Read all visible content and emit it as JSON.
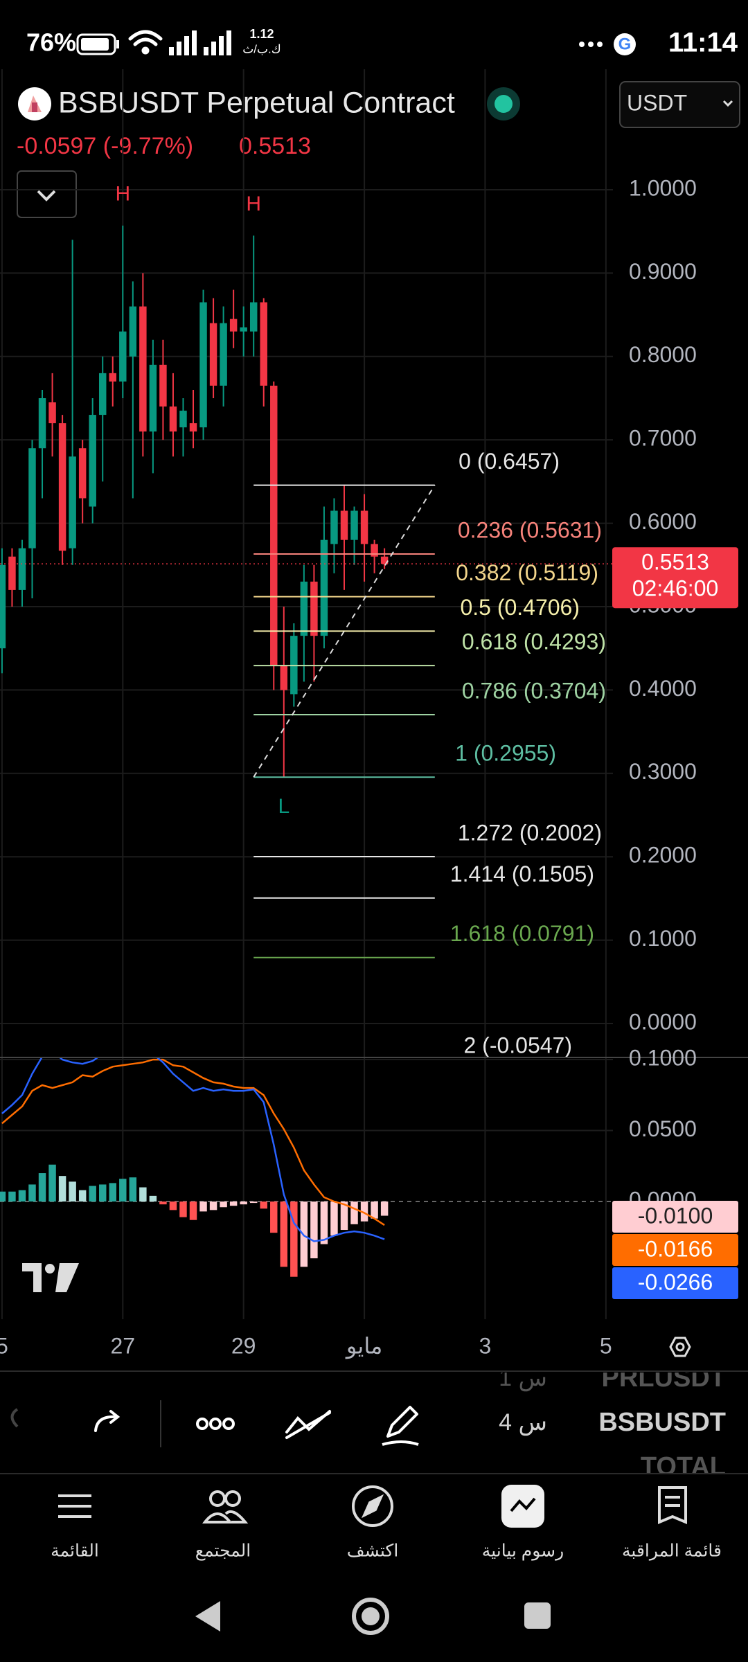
{
  "status_bar": {
    "battery": "76%",
    "speed": "1.12",
    "speed_unit": "ك.ب/ث",
    "time": "11:14"
  },
  "header": {
    "symbol": "BSBUSDT Perpetual Contract",
    "currency": "USDT",
    "change": "-0.0597 (-9.77%)"
  },
  "chart_data": {
    "type": "candlestick",
    "x": [
      0,
      1,
      2,
      3,
      4,
      5,
      6,
      7,
      8,
      9,
      10,
      11,
      12,
      13,
      14,
      15,
      16,
      17,
      18,
      19,
      20,
      21,
      22,
      23,
      24,
      25,
      26,
      27,
      28,
      29,
      30,
      31,
      32,
      33,
      34,
      35,
      36,
      37,
      38
    ],
    "open": [
      0.45,
      0.56,
      0.52,
      0.57,
      0.69,
      0.745,
      0.72,
      0.57,
      0.69,
      0.62,
      0.73,
      0.78,
      0.77,
      0.8,
      0.86,
      0.71,
      0.79,
      0.74,
      0.715,
      0.72,
      0.715,
      0.84,
      0.765,
      0.845,
      0.83,
      0.83,
      0.865,
      0.765,
      0.43,
      0.395,
      0.465,
      0.53,
      0.465,
      0.575,
      0.615,
      0.58,
      0.615,
      0.575,
      0.56
    ],
    "high": [
      0.57,
      0.57,
      0.58,
      0.7,
      0.76,
      0.78,
      0.73,
      0.94,
      0.7,
      0.75,
      0.8,
      0.8,
      0.957,
      0.89,
      0.9,
      0.82,
      0.82,
      0.78,
      0.75,
      0.76,
      0.88,
      0.87,
      0.86,
      0.88,
      0.86,
      0.945,
      0.87,
      0.77,
      0.5,
      0.48,
      0.55,
      0.55,
      0.62,
      0.63,
      0.645,
      0.62,
      0.635,
      0.58,
      0.57
    ],
    "low": [
      0.42,
      0.5,
      0.5,
      0.51,
      0.63,
      0.68,
      0.55,
      0.55,
      0.6,
      0.6,
      0.65,
      0.74,
      0.75,
      0.63,
      0.68,
      0.66,
      0.7,
      0.68,
      0.68,
      0.69,
      0.7,
      0.75,
      0.74,
      0.81,
      0.8,
      0.8,
      0.74,
      0.4,
      0.2955,
      0.38,
      0.41,
      0.41,
      0.45,
      0.54,
      0.52,
      0.55,
      0.53,
      0.54,
      0.545
    ],
    "close": [
      0.55,
      0.52,
      0.57,
      0.69,
      0.75,
      0.72,
      0.567,
      0.68,
      0.63,
      0.73,
      0.78,
      0.77,
      0.83,
      0.86,
      0.71,
      0.79,
      0.74,
      0.71,
      0.735,
      0.71,
      0.865,
      0.765,
      0.84,
      0.83,
      0.835,
      0.865,
      0.765,
      0.43,
      0.4,
      0.465,
      0.53,
      0.465,
      0.58,
      0.615,
      0.58,
      0.615,
      0.575,
      0.56,
      0.5513
    ],
    "colors": {
      "up": "#089981",
      "down": "#f23645"
    },
    "xlim": [
      -0.2,
      60.7
    ],
    "xticks": [
      {
        "value": 0,
        "label": "5"
      },
      {
        "value": 12,
        "label": "27"
      },
      {
        "value": 24,
        "label": "29"
      },
      {
        "value": 36,
        "label": "مايو"
      },
      {
        "value": 48,
        "label": "3"
      },
      {
        "value": 60,
        "label": "5"
      }
    ],
    "ylim": [
      -0.0407,
      1.1445
    ],
    "yticks": [
      {
        "value": 0,
        "label": "0.0000"
      },
      {
        "value": 0.1,
        "label": "0.1000"
      },
      {
        "value": 0.2,
        "label": "0.2000"
      },
      {
        "value": 0.3,
        "label": "0.3000"
      },
      {
        "value": 0.4,
        "label": "0.4000"
      },
      {
        "value": 0.5,
        "label": "0.5000"
      },
      {
        "value": 0.6,
        "label": "0.6000"
      },
      {
        "value": 0.7,
        "label": "0.7000"
      },
      {
        "value": 0.8,
        "label": "0.8000"
      },
      {
        "value": 0.9,
        "label": "0.9000"
      },
      {
        "value": 1,
        "label": "1.0000"
      }
    ],
    "grid": true,
    "countdown": "02:46:00",
    "annotations": [
      {
        "text": "H",
        "x": 12,
        "color": "#f23645"
      },
      {
        "text": "H",
        "x": 25,
        "color": "#f23645"
      },
      {
        "text": "L",
        "x": 28,
        "color": "#089981"
      }
    ],
    "fib": {
      "x_range": [
        25,
        43
      ],
      "levels": [
        {
          "label": "0 (0.6457)",
          "value": 0.6457,
          "color": "#e6e6e6"
        },
        {
          "label": "0.236 (0.5631)",
          "value": 0.5631,
          "color": "#f7837b"
        },
        {
          "label": "0.382 (0.5119)",
          "value": 0.5119,
          "color": "#f3d68c"
        },
        {
          "label": "0.5 (0.4706)",
          "value": 0.4706,
          "color": "#f5efab"
        },
        {
          "label": "0.618 (0.4293)",
          "value": 0.4293,
          "color": "#bfe3a8"
        },
        {
          "label": "0.786 (0.3704)",
          "value": 0.3704,
          "color": "#9fd3a3"
        },
        {
          "label": "1 (0.2955)",
          "value": 0.2955,
          "color": "#5ebfa3"
        },
        {
          "label": "1.272 (0.2002)",
          "value": 0.2002,
          "color": "#e6e6e6"
        },
        {
          "label": "1.414 (0.1505)",
          "value": 0.1505,
          "color": "#e6e6e6"
        },
        {
          "label": "1.618 (0.0791)",
          "value": 0.0791,
          "color": "#6aa84f"
        },
        {
          "label": "2 (-0.0547)",
          "value": -0.0547,
          "color": "#e6e6e6"
        }
      ]
    },
    "macd": {
      "ylim": [
        -0.0829,
        0.101
      ],
      "yticks": [
        {
          "value": 0,
          "label": "0.0000"
        },
        {
          "value": 0.05,
          "label": "0.0500"
        },
        {
          "value": 0.1,
          "label": "0.1000"
        }
      ],
      "histogram": {
        "values": [
          0.007,
          0.007,
          0.008,
          0.012,
          0.02,
          0.026,
          0.018,
          0.014,
          0.008,
          0.011,
          0.012,
          0.013,
          0.016,
          0.017,
          0.01,
          0.004,
          -0.002,
          -0.006,
          -0.011,
          -0.013,
          -0.007,
          -0.006,
          -0.004,
          -0.003,
          -0.002,
          -0.001,
          -0.005,
          -0.022,
          -0.046,
          -0.053,
          -0.046,
          -0.04,
          -0.03,
          -0.024,
          -0.02,
          -0.016,
          -0.014,
          -0.012,
          -0.01
        ],
        "value_label": "-0.0100",
        "colors": [
          "#26a69a",
          "#b2dfdb",
          "#ff5252",
          "#ffcdd2"
        ]
      },
      "signal": {
        "values": [
          0.055,
          0.061,
          0.067,
          0.078,
          0.082,
          0.08,
          0.082,
          0.084,
          0.089,
          0.088,
          0.092,
          0.095,
          0.096,
          0.097,
          0.098,
          0.1,
          0.1,
          0.096,
          0.095,
          0.091,
          0.087,
          0.084,
          0.083,
          0.081,
          0.08,
          0.08,
          0.075,
          0.062,
          0.051,
          0.038,
          0.022,
          0.012,
          0.003,
          0,
          -0.002,
          -0.005,
          -0.008,
          -0.012,
          -0.0166
        ],
        "value_label": "-0.0166",
        "color": "#ff6d00"
      },
      "macd": {
        "values": [
          0.062,
          0.068,
          0.075,
          0.09,
          0.102,
          0.106,
          0.1,
          0.098,
          0.097,
          0.099,
          0.104,
          0.108,
          0.112,
          0.114,
          0.108,
          0.104,
          0.098,
          0.09,
          0.084,
          0.078,
          0.08,
          0.078,
          0.079,
          0.078,
          0.078,
          0.079,
          0.07,
          0.04,
          0.005,
          -0.015,
          -0.024,
          -0.028,
          -0.027,
          -0.024,
          -0.022,
          -0.021,
          -0.022,
          -0.024,
          -0.0266
        ],
        "value_label": "-0.0266",
        "color": "#2962ff"
      }
    }
  },
  "watchlist": [
    {
      "symbol": "PRLUSDT",
      "time": "1 س"
    },
    {
      "symbol": "BSBUSDT",
      "time": "4 س"
    },
    {
      "symbol": "TOTAL"
    }
  ],
  "nav": [
    "القائمة",
    "المجتمع",
    "اكتشف",
    "رسوم بيانية",
    "قائمة المراقبة"
  ]
}
